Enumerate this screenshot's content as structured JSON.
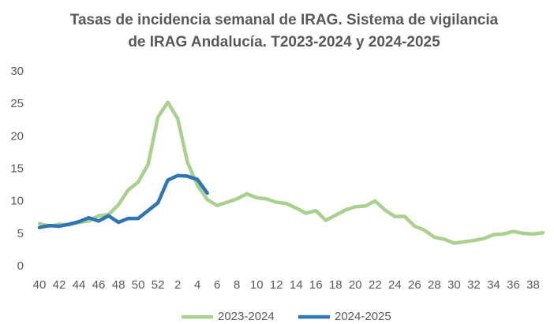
{
  "chart_data": {
    "type": "line",
    "title": "Tasas de incidencia semanal de IRAG. Sistema de vigilancia de IRAG Andalucía. T2023-2024 y 2024-2025",
    "categories": [
      "40",
      null,
      "42",
      null,
      "44",
      null,
      "46",
      null,
      "48",
      null,
      "50",
      null,
      "52",
      null,
      "2",
      null,
      "4",
      null,
      "6",
      null,
      "8",
      null,
      "10",
      null,
      "12",
      null,
      "14",
      null,
      "16",
      null,
      "18",
      null,
      "20",
      null,
      "22",
      null,
      "24",
      null,
      "26",
      null,
      "28",
      null,
      "30",
      null,
      "32",
      null,
      "34",
      null,
      "36",
      null,
      "38",
      null
    ],
    "series": [
      {
        "name": "2023-2024",
        "color": "#a9d18e",
        "values": [
          6.6,
          6.2,
          6.5,
          6.4,
          6.8,
          7.0,
          7.8,
          8.0,
          9.5,
          11.8,
          13.0,
          15.7,
          23.0,
          25.3,
          22.8,
          16.0,
          12.5,
          10.3,
          9.4,
          9.9,
          10.4,
          11.2,
          10.6,
          10.4,
          9.9,
          9.7,
          9.0,
          8.2,
          8.6,
          7.1,
          7.9,
          8.7,
          9.2,
          9.3,
          10.1,
          8.7,
          7.7,
          7.7,
          6.2,
          5.6,
          4.5,
          4.2,
          3.6,
          3.8,
          4.0,
          4.3,
          4.9,
          5.0,
          5.4,
          5.1,
          5.0,
          5.2
        ]
      },
      {
        "name": "2024-2025",
        "color": "#2e75b6",
        "values": [
          6.0,
          6.3,
          6.2,
          6.5,
          6.9,
          7.5,
          7.0,
          7.8,
          6.8,
          7.4,
          7.4,
          8.6,
          9.8,
          13.3,
          14.0,
          13.9,
          13.4,
          11.3,
          null,
          null,
          null,
          null,
          null,
          null,
          null,
          null,
          null,
          null,
          null,
          null,
          null,
          null,
          null,
          null,
          null,
          null,
          null,
          null,
          null,
          null,
          null,
          null,
          null,
          null,
          null,
          null,
          null,
          null,
          null,
          null,
          null,
          null
        ]
      }
    ],
    "ylim": [
      0,
      30
    ],
    "yticks": [
      0,
      5,
      10,
      15,
      20,
      25,
      30
    ],
    "grid": false,
    "legend": "bottom"
  }
}
